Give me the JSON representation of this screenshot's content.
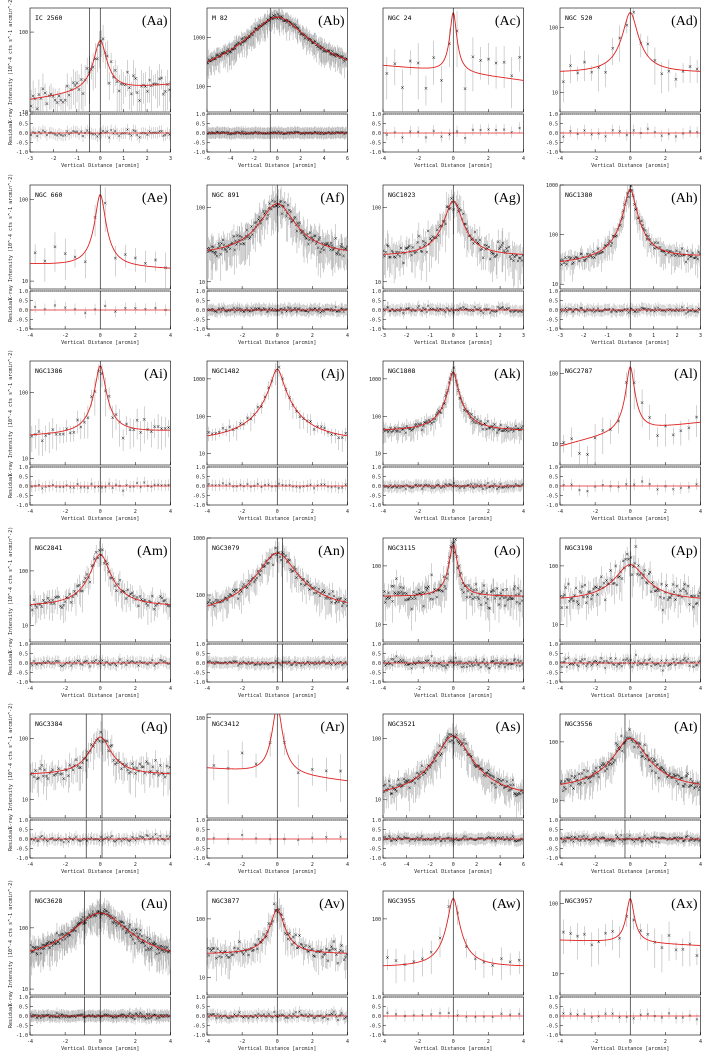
{
  "colors": {
    "model": "#e02020",
    "data": "#000000",
    "errorbar": "#9a9a9a",
    "frame": "#000000"
  },
  "chart_data": [
    {
      "type": "scatter",
      "label": "(Aa)",
      "galaxy": "IC 2560",
      "xlim": [
        -3,
        3
      ],
      "ylim": [
        10,
        200
      ],
      "yticks": [
        10,
        100
      ],
      "xticks": [
        -3,
        -2,
        -1,
        0,
        1,
        2,
        3
      ],
      "peak": 60,
      "width": 0.25,
      "bg_left": 14,
      "bg_right": 22,
      "vlines": [
        -0.45,
        0
      ],
      "xlabel": "Vertical Distance [arcmin]",
      "ylabel": "X-ray Intensity (10^-4 cts s^-1 arcmin^-2)",
      "residual_label": "Residual",
      "residual_ylim": [
        -1,
        1
      ],
      "residual_yticks": [
        -1.0,
        -0.5,
        0.0,
        0.5,
        1.0
      ],
      "npoints": 70,
      "noise": 0.28
    },
    {
      "type": "scatter",
      "label": "(Ab)",
      "galaxy": "M 82",
      "xlim": [
        -6,
        6
      ],
      "ylim": [
        30,
        4000
      ],
      "yticks": [
        100,
        1000
      ],
      "xticks": [
        -6,
        -4,
        -2,
        0,
        2,
        4,
        6
      ],
      "peak": 2500,
      "width": 1.9,
      "bg_left": 90,
      "bg_right": 120,
      "vlines": [
        -0.6
      ],
      "xlabel": "Vertical Distance [arcmin]",
      "ylabel": "",
      "residual_label": "",
      "residual_ylim": [
        -1,
        1
      ],
      "residual_yticks": [
        -1.0,
        -0.5,
        0.0,
        0.5,
        1.0
      ],
      "npoints": 200,
      "noise": 0.08
    },
    {
      "type": "scatter",
      "label": "(Ac)",
      "galaxy": "NGC 24",
      "xlim": [
        -4,
        4
      ],
      "ylim": [
        15,
        150
      ],
      "yticks": [],
      "xticks": [
        -4,
        -2,
        0,
        2,
        4
      ],
      "peak": 100,
      "width": 0.18,
      "bg_left": 42,
      "bg_right": 30,
      "vlines": [
        0
      ],
      "xlabel": "Vertical Distance [arcmin]",
      "ylabel": "",
      "residual_label": "",
      "residual_ylim": [
        -1,
        1
      ],
      "residual_yticks": [
        -1.0,
        -0.5,
        0.0,
        0.5,
        1.0
      ],
      "npoints": 18,
      "noise": 0.35
    },
    {
      "type": "scatter",
      "label": "(Ad)",
      "galaxy": "NGC 520",
      "xlim": [
        -4,
        4
      ],
      "ylim": [
        5,
        200
      ],
      "yticks": [
        10,
        100
      ],
      "xticks": [
        -4,
        -2,
        0,
        2,
        4
      ],
      "peak": 150,
      "width": 0.35,
      "bg_left": 20,
      "bg_right": 20,
      "vlines": [
        0
      ],
      "xlabel": "Vertical Distance [arcmin]",
      "ylabel": "",
      "residual_label": "",
      "residual_ylim": [
        -1,
        1
      ],
      "residual_yticks": [
        -1.0,
        -0.5,
        0.0,
        0.5,
        1.0
      ],
      "npoints": 20,
      "noise": 0.3
    },
    {
      "type": "scatter",
      "label": "(Ae)",
      "galaxy": "NGC 660",
      "xlim": [
        -4,
        4
      ],
      "ylim": [
        8,
        150
      ],
      "yticks": [
        10,
        100
      ],
      "xticks": [
        -4,
        -2,
        0,
        2,
        4
      ],
      "peak": 100,
      "width": 0.25,
      "bg_left": 16,
      "bg_right": 14,
      "vlines": [
        0
      ],
      "xlabel": "Vertical Distance [arcmin]",
      "ylabel": "X-ray Intensity (10^-4 cts s^-1 arcmin^-2)",
      "residual_label": "Residual",
      "residual_ylim": [
        -1,
        1
      ],
      "residual_yticks": [
        -1.0,
        -0.5,
        0.0,
        0.5,
        1.0
      ],
      "npoints": 14,
      "noise": 0.25
    },
    {
      "type": "scatter",
      "label": "(Af)",
      "galaxy": "NGC 891",
      "xlim": [
        -4,
        4
      ],
      "ylim": [
        8,
        200
      ],
      "yticks": [
        10,
        100
      ],
      "xticks": [
        -4,
        -2,
        0,
        2,
        4
      ],
      "peak": 90,
      "width": 0.9,
      "bg_left": 22,
      "bg_right": 22,
      "vlines": [
        0
      ],
      "xlabel": "Vertical Distance [arcmin]",
      "ylabel": "",
      "residual_label": "",
      "residual_ylim": [
        -1,
        1
      ],
      "residual_yticks": [
        -1.0,
        -0.5,
        0.0,
        0.5,
        1.0
      ],
      "npoints": 160,
      "noise": 0.18
    },
    {
      "type": "scatter",
      "label": "(Ag)",
      "galaxy": "NGC1023",
      "xlim": [
        -3,
        3
      ],
      "ylim": [
        8,
        200
      ],
      "yticks": [
        10,
        100
      ],
      "xticks": [
        -3,
        -2,
        -1,
        0,
        1,
        2,
        3
      ],
      "peak": 100,
      "width": 0.35,
      "bg_left": 22,
      "bg_right": 22,
      "vlines": [
        0
      ],
      "xlabel": "Vertical Distance [arcmin]",
      "ylabel": "",
      "residual_label": "",
      "residual_ylim": [
        -1,
        1
      ],
      "residual_yticks": [
        -1.0,
        -0.5,
        0.0,
        0.5,
        1.0
      ],
      "npoints": 120,
      "noise": 0.22
    },
    {
      "type": "scatter",
      "label": "(Ah)",
      "galaxy": "NGC1380",
      "xlim": [
        -3,
        3
      ],
      "ylim": [
        8,
        1000
      ],
      "yticks": [
        10,
        100,
        1000
      ],
      "xticks": [
        -3,
        -2,
        -1,
        0,
        1,
        2,
        3
      ],
      "peak": 800,
      "width": 0.2,
      "bg_left": 25,
      "bg_right": 35,
      "vlines": [
        0
      ],
      "xlabel": "Vertical Distance [arcmin]",
      "ylabel": "",
      "residual_label": "",
      "residual_ylim": [
        -1,
        1
      ],
      "residual_yticks": [
        -1.0,
        -0.5,
        0.0,
        0.5,
        1.0
      ],
      "npoints": 120,
      "noise": 0.18
    },
    {
      "type": "scatter",
      "label": "(Ai)",
      "galaxy": "NGC1386",
      "xlim": [
        -4,
        4
      ],
      "ylim": [
        8,
        300
      ],
      "yticks": [
        10,
        100
      ],
      "xticks": [
        -4,
        -2,
        0,
        2,
        4
      ],
      "peak": 230,
      "width": 0.25,
      "bg_left": 22,
      "bg_right": 26,
      "vlines": [
        0
      ],
      "xlabel": "Vertical Distance [arcmin]",
      "ylabel": "X-ray Intensity (10^-4 cts s^-1 arcmin^-2)",
      "residual_label": "Residual",
      "residual_ylim": [
        -1,
        1
      ],
      "residual_yticks": [
        -1.0,
        -0.5,
        0.0,
        0.5,
        1.0
      ],
      "npoints": 40,
      "noise": 0.25
    },
    {
      "type": "scatter",
      "label": "(Aj)",
      "galaxy": "NGC1482",
      "xlim": [
        -4,
        4
      ],
      "ylim": [
        5,
        3000
      ],
      "yticks": [
        10,
        100,
        1000
      ],
      "xticks": [
        -4,
        -2,
        0,
        2,
        4
      ],
      "peak": 1800,
      "width": 0.3,
      "bg_left": 20,
      "bg_right": 20,
      "vlines": [
        0
      ],
      "xlabel": "Vertical Distance [arcmin]",
      "ylabel": "",
      "residual_label": "",
      "residual_ylim": [
        -1,
        1
      ],
      "residual_yticks": [
        -1.0,
        -0.5,
        0.0,
        0.5,
        1.0
      ],
      "npoints": 40,
      "noise": 0.25
    },
    {
      "type": "scatter",
      "label": "(Ak)",
      "galaxy": "NGC1808",
      "xlim": [
        -4,
        4
      ],
      "ylim": [
        5,
        3000
      ],
      "yticks": [
        10,
        100,
        1000
      ],
      "xticks": [
        -4,
        -2,
        0,
        2,
        4
      ],
      "peak": 1500,
      "width": 0.2,
      "bg_left": 40,
      "bg_right": 40,
      "vlines": [
        0
      ],
      "xlabel": "Vertical Distance [arcmin]",
      "ylabel": "",
      "residual_label": "",
      "residual_ylim": [
        -1,
        1
      ],
      "residual_yticks": [
        -1.0,
        -0.5,
        0.0,
        0.5,
        1.0
      ],
      "npoints": 120,
      "noise": 0.18
    },
    {
      "type": "scatter",
      "label": "(Al)",
      "galaxy": "NGC2787",
      "xlim": [
        -4,
        4
      ],
      "ylim": [
        5,
        150
      ],
      "yticks": [
        10,
        100
      ],
      "xticks": [
        -4,
        -2,
        0,
        2,
        4
      ],
      "peak": 110,
      "width": 0.2,
      "bg_left": 9,
      "bg_right": 20,
      "vlines": [
        0
      ],
      "xlabel": "Vertical Distance [arcmin]",
      "ylabel": "",
      "residual_label": "",
      "residual_ylim": [
        -1,
        1
      ],
      "residual_yticks": [
        -1.0,
        -0.5,
        0.0,
        0.5,
        1.0
      ],
      "npoints": 18,
      "noise": 0.3
    },
    {
      "type": "scatter",
      "label": "(Am)",
      "galaxy": "NGC2841",
      "xlim": [
        -4,
        4
      ],
      "ylim": [
        5,
        400
      ],
      "yticks": [
        10,
        100
      ],
      "xticks": [
        -4,
        -2,
        0,
        2,
        4
      ],
      "peak": 180,
      "width": 0.45,
      "bg_left": 22,
      "bg_right": 22,
      "vlines": [
        0
      ],
      "xlabel": "Vertical Distance [arcmin]",
      "ylabel": "X-ray Intensity (10^-4 cts s^-1 arcmin^-2)",
      "residual_label": "Residual",
      "residual_ylim": [
        -1,
        1
      ],
      "residual_yticks": [
        -1.0,
        -0.5,
        0.0,
        0.5,
        1.0
      ],
      "npoints": 90,
      "noise": 0.22
    },
    {
      "type": "scatter",
      "label": "(An)",
      "galaxy": "NGC3079",
      "xlim": [
        -4,
        4
      ],
      "ylim": [
        15,
        1000
      ],
      "yticks": [
        100,
        1000
      ],
      "xticks": [
        -4,
        -2,
        0,
        2,
        4
      ],
      "peak": 500,
      "width": 0.9,
      "bg_left": 40,
      "bg_right": 50,
      "vlines": [
        0,
        0.3
      ],
      "xlabel": "Vertical Distance [arcmin]",
      "ylabel": "",
      "residual_label": "",
      "residual_ylim": [
        -1,
        1
      ],
      "residual_yticks": [
        -1.0,
        -0.5,
        0.0,
        0.5,
        1.0
      ],
      "npoints": 120,
      "noise": 0.18
    },
    {
      "type": "scatter",
      "label": "(Ao)",
      "galaxy": "NGC3115",
      "xlim": [
        -4,
        4
      ],
      "ylim": [
        5,
        300
      ],
      "yticks": [
        10,
        100
      ],
      "xticks": [
        -4,
        -2,
        0,
        2,
        4
      ],
      "peak": 200,
      "width": 0.2,
      "bg_left": 30,
      "bg_right": 30,
      "vlines": [
        0
      ],
      "xlabel": "Vertical Distance [arcmin]",
      "ylabel": "",
      "residual_label": "",
      "residual_ylim": [
        -1,
        1
      ],
      "residual_yticks": [
        -1.0,
        -0.5,
        0.0,
        0.5,
        1.0
      ],
      "npoints": 140,
      "noise": 0.3
    },
    {
      "type": "scatter",
      "label": "(Ap)",
      "galaxy": "NGC3198",
      "xlim": [
        -4,
        4
      ],
      "ylim": [
        5,
        300
      ],
      "yticks": [
        10,
        100
      ],
      "xticks": [
        -4,
        -2,
        0,
        2,
        4
      ],
      "peak": 80,
      "width": 0.8,
      "bg_left": 25,
      "bg_right": 25,
      "vlines": [
        0
      ],
      "xlabel": "Vertical Distance [arcmin]",
      "ylabel": "",
      "residual_label": "",
      "residual_ylim": [
        -1,
        1
      ],
      "residual_yticks": [
        -1.0,
        -0.5,
        0.0,
        0.5,
        1.0
      ],
      "npoints": 110,
      "noise": 0.35
    },
    {
      "type": "scatter",
      "label": "(Aq)",
      "galaxy": "NGC3384",
      "xlim": [
        -4,
        4
      ],
      "ylim": [
        5,
        250
      ],
      "yticks": [
        10,
        100
      ],
      "xticks": [
        -4,
        -2,
        0,
        2,
        4
      ],
      "peak": 80,
      "width": 0.55,
      "bg_left": 25,
      "bg_right": 25,
      "vlines": [
        -0.8,
        0.1
      ],
      "xlabel": "Vertical Distance [arcmin]",
      "ylabel": "X-ray Intensity (10^-4 cts s^-1 arcmin^-2)",
      "residual_label": "Residual",
      "residual_ylim": [
        -1,
        1
      ],
      "residual_yticks": [
        -1.0,
        -0.5,
        0.0,
        0.5,
        1.0
      ],
      "npoints": 90,
      "noise": 0.25
    },
    {
      "type": "scatter",
      "label": "(Ar)",
      "galaxy": "NGC3412",
      "xlim": [
        -4,
        4
      ],
      "ylim": [
        8,
        110
      ],
      "yticks": [
        100
      ],
      "xticks": [
        -4,
        -2,
        0,
        2,
        4
      ],
      "peak": 110,
      "width": 0.25,
      "bg_left": 28,
      "bg_right": 20,
      "vlines": [
        0
      ],
      "xlabel": "Vertical Distance [arcmin]",
      "ylabel": "",
      "residual_label": "",
      "residual_ylim": [
        -1,
        1
      ],
      "residual_yticks": [
        -1.0,
        -0.5,
        0.0,
        0.5,
        1.0
      ],
      "npoints": 10,
      "noise": 0.3
    },
    {
      "type": "scatter",
      "label": "(As)",
      "galaxy": "NGC3521",
      "xlim": [
        -6,
        6
      ],
      "ylim": [
        5,
        250
      ],
      "yticks": [
        10,
        100
      ],
      "xticks": [
        -6,
        -4,
        -2,
        0,
        2,
        4,
        6
      ],
      "peak": 100,
      "width": 1.2,
      "bg_left": 10,
      "bg_right": 10,
      "vlines": [
        0
      ],
      "xlabel": "Vertical Distance [arcmin]",
      "ylabel": "",
      "residual_label": "",
      "residual_ylim": [
        -1,
        1
      ],
      "residual_yticks": [
        -1.0,
        -0.5,
        0.0,
        0.5,
        1.0
      ],
      "npoints": 150,
      "noise": 0.18
    },
    {
      "type": "scatter",
      "label": "(At)",
      "galaxy": "NGC3556",
      "xlim": [
        -4,
        4
      ],
      "ylim": [
        5,
        300
      ],
      "yticks": [
        10,
        100
      ],
      "xticks": [
        -4,
        -2,
        0,
        2,
        4
      ],
      "peak": 100,
      "width": 0.8,
      "bg_left": 15,
      "bg_right": 15,
      "vlines": [
        -0.3
      ],
      "xlabel": "Vertical Distance [arcmin]",
      "ylabel": "",
      "residual_label": "",
      "residual_ylim": [
        -1,
        1
      ],
      "residual_yticks": [
        -1.0,
        -0.5,
        0.0,
        0.5,
        1.0
      ],
      "npoints": 150,
      "noise": 0.2
    },
    {
      "type": "scatter",
      "label": "(Au)",
      "galaxy": "NGC3628",
      "xlim": [
        -4,
        4
      ],
      "ylim": [
        8,
        400
      ],
      "yticks": [
        10,
        100
      ],
      "xticks": [
        -4,
        -2,
        0,
        2,
        4
      ],
      "peak": 150,
      "width": 1.4,
      "bg_left": 25,
      "bg_right": 25,
      "vlines": [
        -0.9,
        0
      ],
      "xlabel": "Vertical Distance [arcmin]",
      "ylabel": "X-ray Intensity (10^-4 cts s^-1 arcmin^-2)",
      "residual_label": "Residual",
      "residual_ylim": [
        -1,
        1
      ],
      "residual_yticks": [
        -1.0,
        -0.5,
        0.0,
        0.5,
        1.0
      ],
      "npoints": 200,
      "noise": 0.16
    },
    {
      "type": "scatter",
      "label": "(Av)",
      "galaxy": "NGC3877",
      "xlim": [
        -4,
        4
      ],
      "ylim": [
        5,
        300
      ],
      "yticks": [
        10,
        100
      ],
      "xticks": [
        -4,
        -2,
        0,
        2,
        4
      ],
      "peak": 120,
      "width": 0.35,
      "bg_left": 25,
      "bg_right": 25,
      "vlines": [
        0
      ],
      "xlabel": "Vertical Distance [arcmin]",
      "ylabel": "",
      "residual_label": "",
      "residual_ylim": [
        -1,
        1
      ],
      "residual_yticks": [
        -1.0,
        -0.5,
        0.0,
        0.5,
        1.0
      ],
      "npoints": 110,
      "noise": 0.22
    },
    {
      "type": "scatter",
      "label": "(Aw)",
      "galaxy": "NGC3955",
      "xlim": [
        -4,
        4
      ],
      "ylim": [
        5,
        300
      ],
      "yticks": [
        100
      ],
      "xticks": [
        -4,
        -2,
        0,
        2,
        4
      ],
      "peak": 210,
      "width": 0.25,
      "bg_left": 15,
      "bg_right": 15,
      "vlines": [
        0
      ],
      "xlabel": "Vertical Distance [arcmin]",
      "ylabel": "",
      "residual_label": "",
      "residual_ylim": [
        -1,
        1
      ],
      "residual_yticks": [
        -1.0,
        -0.5,
        0.0,
        0.5,
        1.0
      ],
      "npoints": 16,
      "noise": 0.25
    },
    {
      "type": "scatter",
      "label": "(Ax)",
      "galaxy": "NGC3957",
      "xlim": [
        -4,
        4
      ],
      "ylim": [
        5,
        150
      ],
      "yticks": [
        10,
        100
      ],
      "xticks": [
        -4,
        -2,
        0,
        2,
        4
      ],
      "peak": 90,
      "width": 0.2,
      "bg_left": 30,
      "bg_right": 25,
      "vlines": [
        0
      ],
      "xlabel": "Vertical Distance [arcmin]",
      "ylabel": "",
      "residual_label": "",
      "residual_ylim": [
        -1,
        1
      ],
      "residual_yticks": [
        -1.0,
        -0.5,
        0.0,
        0.5,
        1.0
      ],
      "npoints": 20,
      "noise": 0.3
    }
  ]
}
